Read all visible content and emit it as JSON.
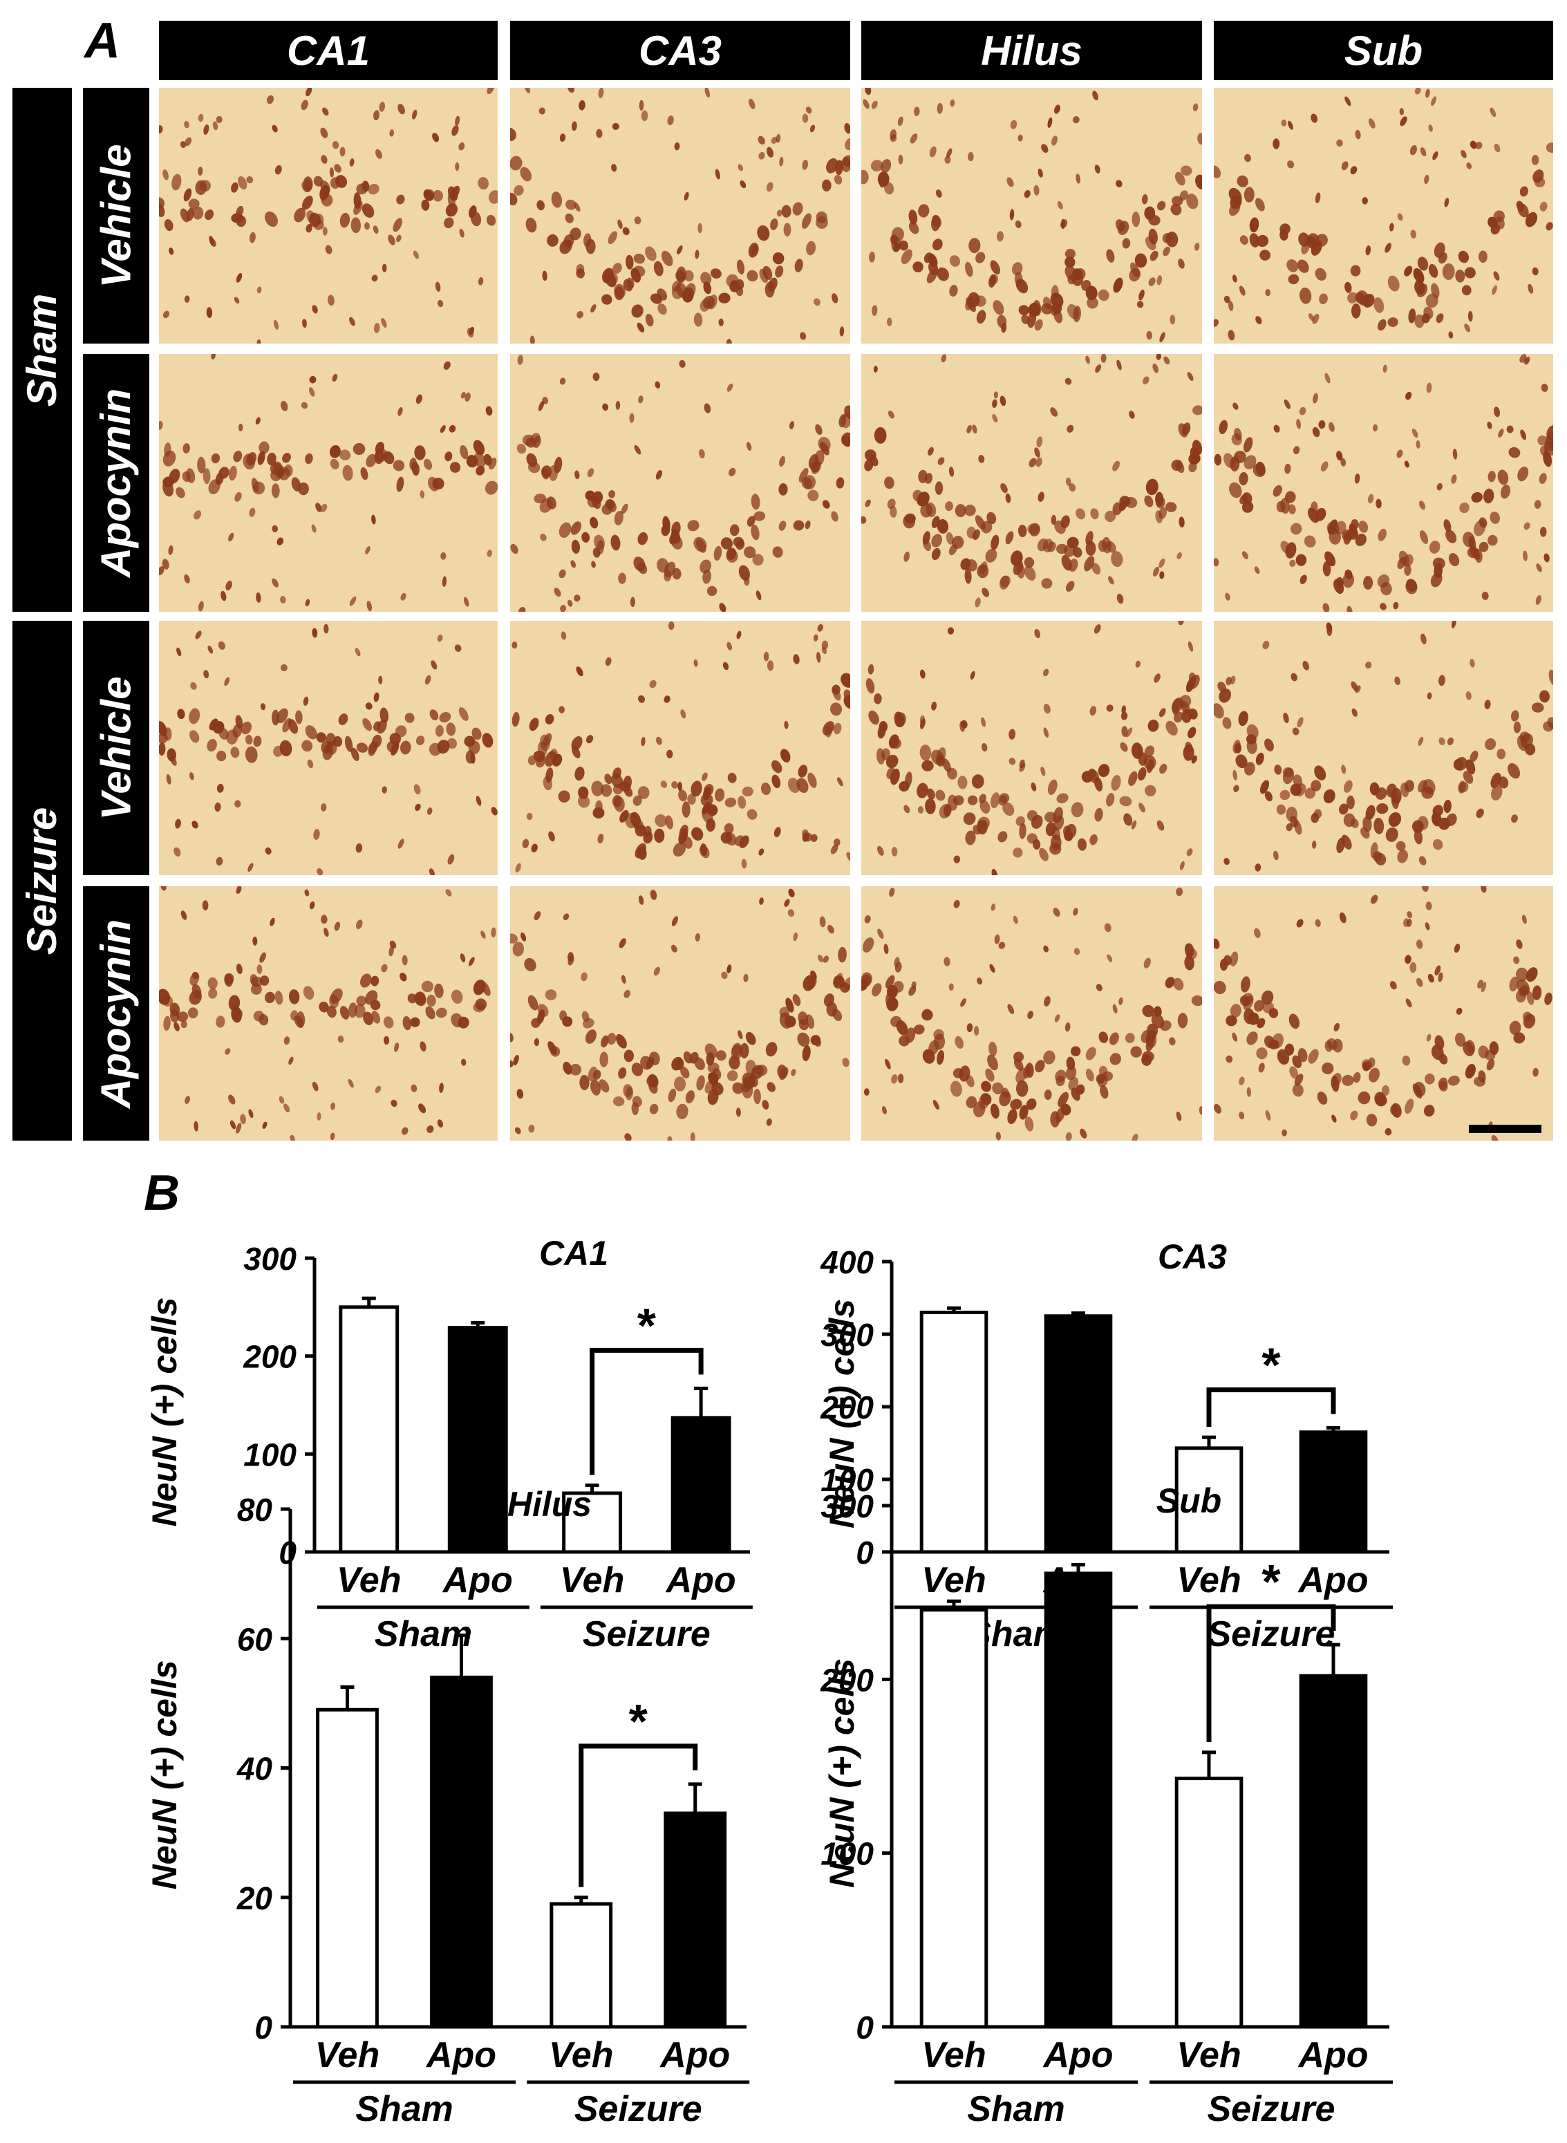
{
  "panel_a": {
    "letter": "A",
    "columns": [
      "CA1",
      "CA3",
      "Hilus",
      "Sub"
    ],
    "groups": [
      {
        "label": "Sham",
        "rows": [
          "Vehicle",
          "Apocynin"
        ]
      },
      {
        "label": "Seizure",
        "rows": [
          "Vehicle",
          "Apocynin"
        ]
      }
    ],
    "image_description_colors": {
      "stain": "#8b3a1a",
      "background": "#efd7a8"
    }
  },
  "panel_b": {
    "letter": "B"
  },
  "chart_data": [
    {
      "type": "bar",
      "title": "CA1",
      "ylabel": "NeuN (+) cells",
      "ylim": [
        0,
        300
      ],
      "yticks": [
        0,
        100,
        200,
        300
      ],
      "categories": [
        "Veh",
        "Apo",
        "Veh",
        "Apo"
      ],
      "groups": [
        "Sham",
        "Seizure"
      ],
      "values": [
        250,
        229,
        60,
        137
      ],
      "errors": [
        9,
        5,
        8,
        30
      ],
      "bar_colors": [
        "#ffffff",
        "#000000",
        "#ffffff",
        "#000000"
      ],
      "significance": "*"
    },
    {
      "type": "bar",
      "title": "CA3",
      "ylabel": "NeuN (+) cells",
      "ylim": [
        0,
        400
      ],
      "yticks": [
        0,
        100,
        200,
        300,
        400
      ],
      "categories": [
        "Veh",
        "Apo",
        "Veh",
        "Apo"
      ],
      "groups": [
        "Sham",
        "Seizure"
      ],
      "values": [
        330,
        325,
        143,
        165
      ],
      "errors": [
        6,
        4,
        15,
        6
      ],
      "bar_colors": [
        "#ffffff",
        "#000000",
        "#ffffff",
        "#000000"
      ],
      "significance": "*"
    },
    {
      "type": "bar",
      "title": "Hilus",
      "ylabel": "NeuN (+) cells",
      "ylim": [
        0,
        80
      ],
      "yticks": [
        0,
        20,
        40,
        60,
        80
      ],
      "categories": [
        "Veh",
        "Apo",
        "Veh",
        "Apo"
      ],
      "groups": [
        "Sham",
        "Seizure"
      ],
      "values": [
        49,
        54,
        19,
        33
      ],
      "errors": [
        3.5,
        6.5,
        1,
        4.5
      ],
      "bar_colors": [
        "#ffffff",
        "#000000",
        "#ffffff",
        "#000000"
      ],
      "significance": "*"
    },
    {
      "type": "bar",
      "title": "Sub",
      "ylabel": "NeuN (+) cells",
      "ylim": [
        0,
        300
      ],
      "yticks": [
        0,
        100,
        200,
        300
      ],
      "categories": [
        "Veh",
        "Apo",
        "Veh",
        "Apo"
      ],
      "groups": [
        "Sham",
        "Seizure"
      ],
      "values": [
        240,
        261,
        143,
        202
      ],
      "errors": [
        5,
        5,
        15,
        18
      ],
      "bar_colors": [
        "#ffffff",
        "#000000",
        "#ffffff",
        "#000000"
      ],
      "significance": "*"
    }
  ]
}
